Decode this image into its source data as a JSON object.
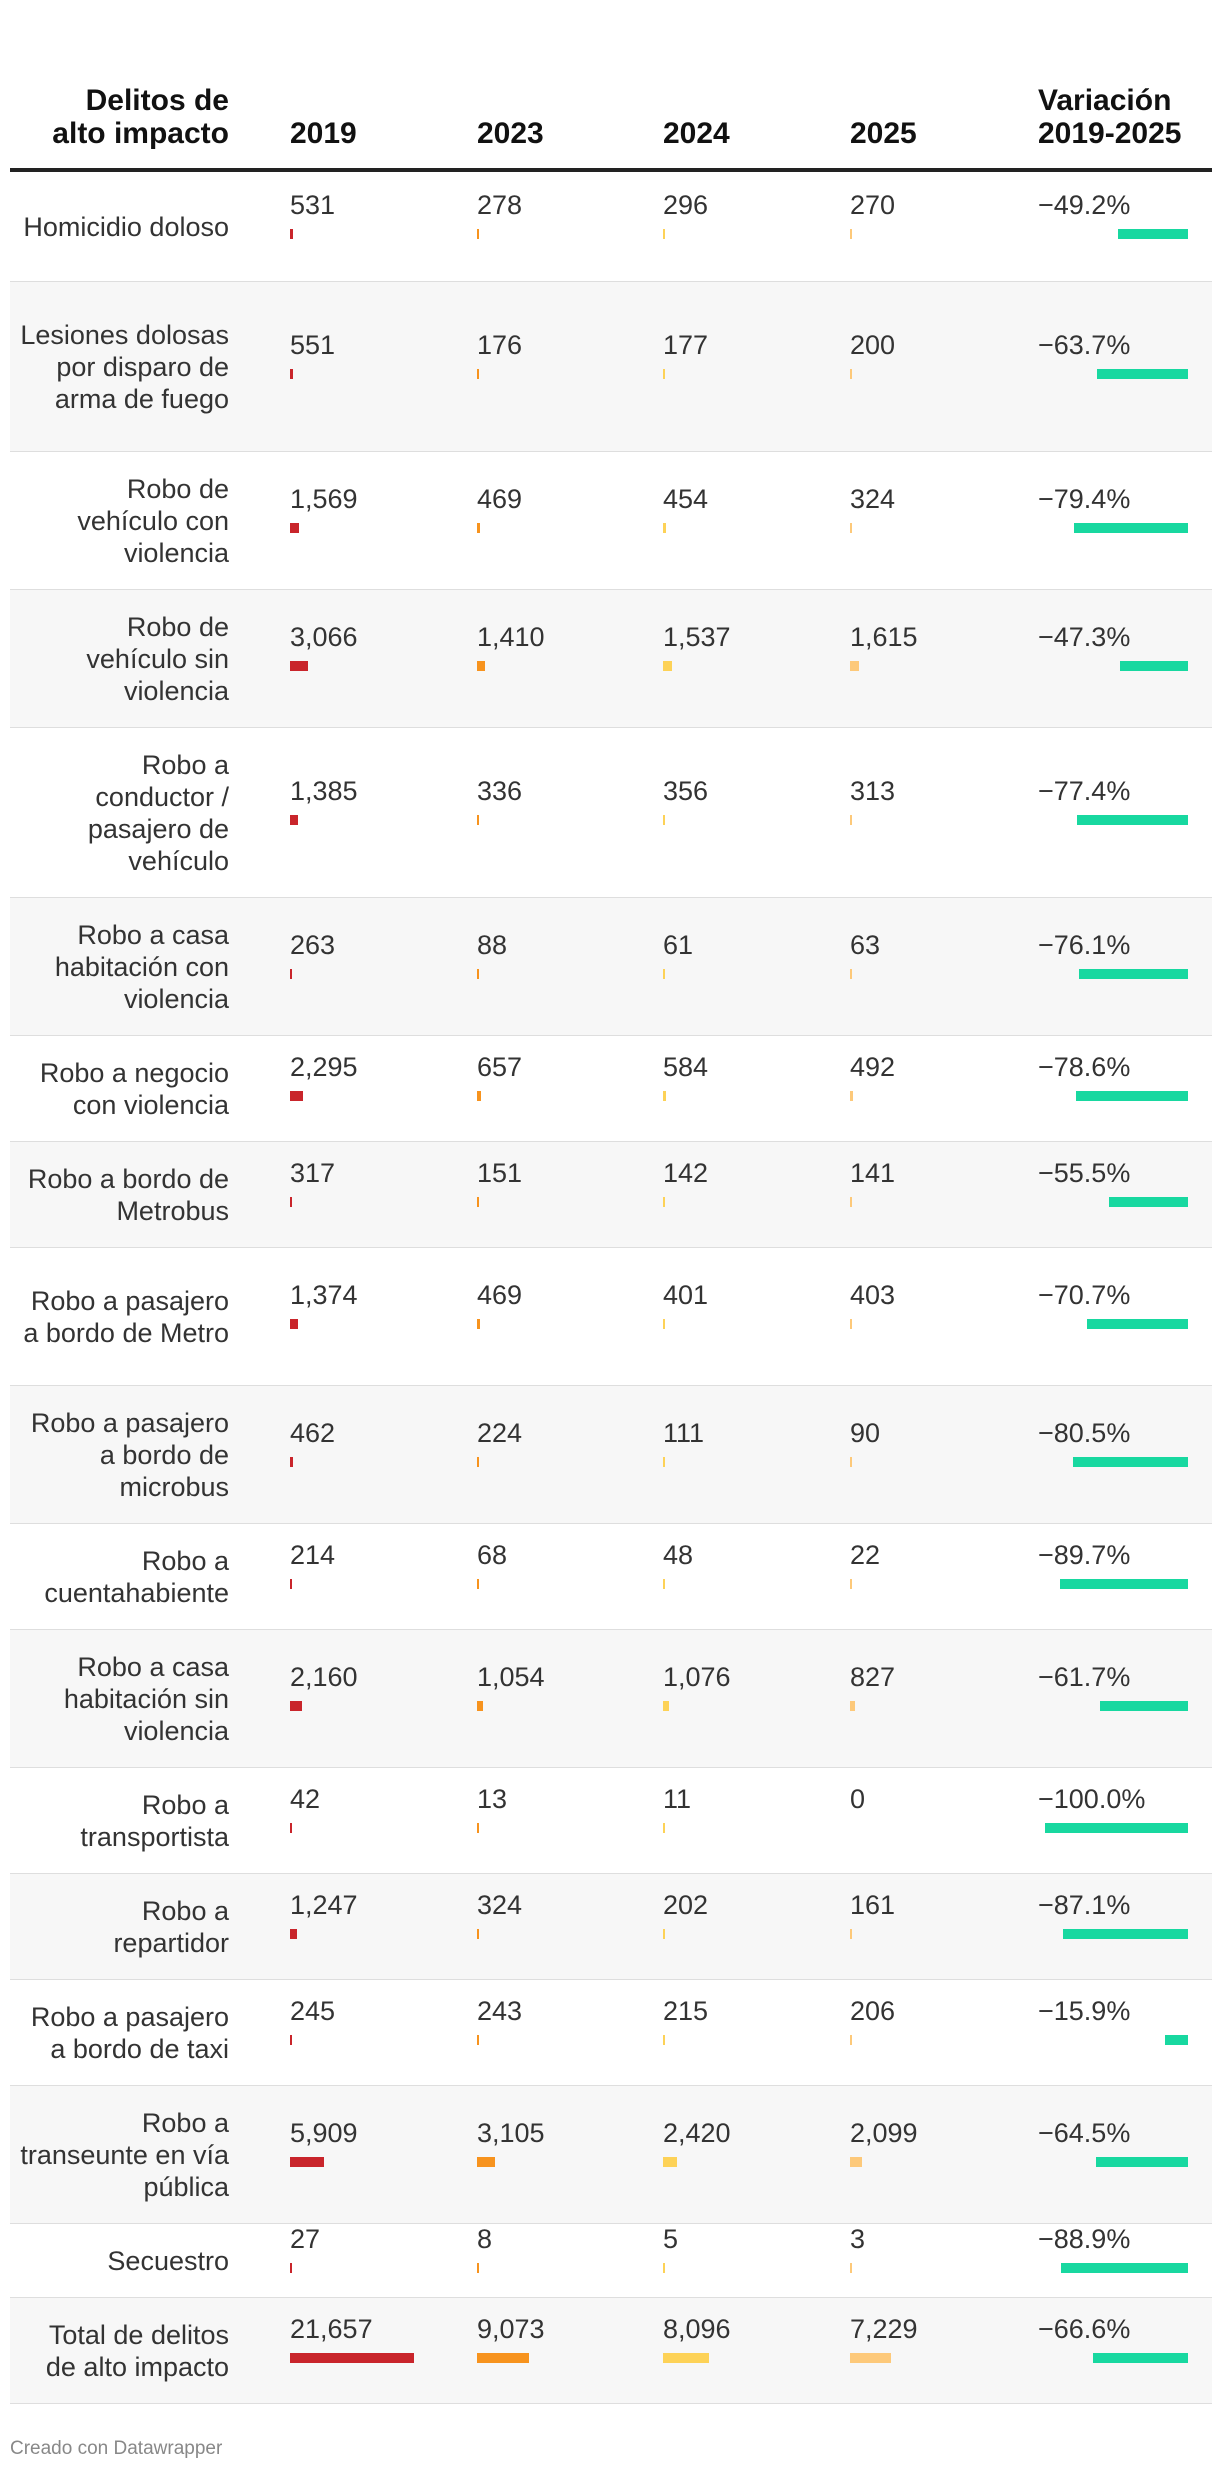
{
  "header": {
    "crime": "Delitos de alto impacto",
    "y2019": "2019",
    "y2023": "2023",
    "y2024": "2024",
    "y2025": "2025",
    "variation": "Variación 2019-2025"
  },
  "colors": {
    "y2019": "#c9252b",
    "y2023": "#f7931e",
    "y2024": "#fdd257",
    "y2025": "#fdc97a",
    "variation": "#18d8a0"
  },
  "rows": [
    {
      "name": "Homicidio doloso",
      "v2019": "531",
      "v2023": "278",
      "v2024": "296",
      "v2025": "270",
      "var": "−49.2%"
    },
    {
      "name": "Lesiones dolosas por disparo de arma de fuego",
      "v2019": "551",
      "v2023": "176",
      "v2024": "177",
      "v2025": "200",
      "var": "−63.7%"
    },
    {
      "name": "Robo de vehículo con violencia",
      "v2019": "1,569",
      "v2023": "469",
      "v2024": "454",
      "v2025": "324",
      "var": "−79.4%"
    },
    {
      "name": "Robo de vehículo sin violencia",
      "v2019": "3,066",
      "v2023": "1,410",
      "v2024": "1,537",
      "v2025": "1,615",
      "var": "−47.3%"
    },
    {
      "name": "Robo a conductor / pasajero de vehículo",
      "v2019": "1,385",
      "v2023": "336",
      "v2024": "356",
      "v2025": "313",
      "var": "−77.4%"
    },
    {
      "name": "Robo a casa habitación con violencia",
      "v2019": "263",
      "v2023": "88",
      "v2024": "61",
      "v2025": "63",
      "var": "−76.1%"
    },
    {
      "name": "Robo a negocio con violencia",
      "v2019": "2,295",
      "v2023": "657",
      "v2024": "584",
      "v2025": "492",
      "var": "−78.6%"
    },
    {
      "name": "Robo a bordo de Metrobus",
      "v2019": "317",
      "v2023": "151",
      "v2024": "142",
      "v2025": "141",
      "var": "−55.5%"
    },
    {
      "name": "Robo a pasajero a bordo de Metro",
      "v2019": "1,374",
      "v2023": "469",
      "v2024": "401",
      "v2025": "403",
      "var": "−70.7%"
    },
    {
      "name": "Robo a pasajero a bordo de microbus",
      "v2019": "462",
      "v2023": "224",
      "v2024": "111",
      "v2025": "90",
      "var": "−80.5%"
    },
    {
      "name": "Robo a cuentahabiente",
      "v2019": "214",
      "v2023": "68",
      "v2024": "48",
      "v2025": "22",
      "var": "−89.7%"
    },
    {
      "name": "Robo a casa habitación sin violencia",
      "v2019": "2,160",
      "v2023": "1,054",
      "v2024": "1,076",
      "v2025": "827",
      "var": "−61.7%"
    },
    {
      "name": "Robo a transportista",
      "v2019": "42",
      "v2023": "13",
      "v2024": "11",
      "v2025": "0",
      "var": "−100.0%"
    },
    {
      "name": "Robo a repartidor",
      "v2019": "1,247",
      "v2023": "324",
      "v2024": "202",
      "v2025": "161",
      "var": "−87.1%"
    },
    {
      "name": "Robo a pasajero a bordo de taxi",
      "v2019": "245",
      "v2023": "243",
      "v2024": "215",
      "v2025": "206",
      "var": "−15.9%"
    },
    {
      "name": "Robo a transeunte en vía pública",
      "v2019": "5,909",
      "v2023": "3,105",
      "v2024": "2,420",
      "v2025": "2,099",
      "var": "−64.5%"
    },
    {
      "name": "Secuestro",
      "v2019": "27",
      "v2023": "8",
      "v2024": "5",
      "v2025": "3",
      "var": "−88.9%"
    },
    {
      "name": "Total de delitos de alto impacto",
      "v2019": "21,657",
      "v2023": "9,073",
      "v2024": "8,096",
      "v2025": "7,229",
      "var": "−66.6%"
    }
  ],
  "chart_data": {
    "type": "table",
    "columns": [
      "2019",
      "2023",
      "2024",
      "2025",
      "Variación 2019-2025"
    ],
    "categories": [
      "Homicidio doloso",
      "Lesiones dolosas por disparo de arma de fuego",
      "Robo de vehículo con violencia",
      "Robo de vehículo sin violencia",
      "Robo a conductor / pasajero de vehículo",
      "Robo a casa habitación con violencia",
      "Robo a negocio con violencia",
      "Robo a bordo de Metrobus",
      "Robo a pasajero a bordo de Metro",
      "Robo a pasajero a bordo de microbus",
      "Robo a cuentahabiente",
      "Robo a casa habitación sin violencia",
      "Robo a transportista",
      "Robo a repartidor",
      "Robo a pasajero a bordo de taxi",
      "Robo a transeunte en vía pública",
      "Secuestro",
      "Total de delitos de alto impacto"
    ],
    "series": [
      {
        "name": "2019",
        "values": [
          531,
          551,
          1569,
          3066,
          1385,
          263,
          2295,
          317,
          1374,
          462,
          214,
          2160,
          42,
          1247,
          245,
          5909,
          27,
          21657
        ]
      },
      {
        "name": "2023",
        "values": [
          278,
          176,
          469,
          1410,
          336,
          88,
          657,
          151,
          469,
          224,
          68,
          1054,
          13,
          324,
          243,
          3105,
          8,
          9073
        ]
      },
      {
        "name": "2024",
        "values": [
          296,
          177,
          454,
          1537,
          356,
          61,
          584,
          142,
          401,
          111,
          48,
          1076,
          11,
          202,
          215,
          2420,
          5,
          8096
        ]
      },
      {
        "name": "2025",
        "values": [
          270,
          200,
          324,
          1615,
          313,
          63,
          492,
          141,
          403,
          90,
          22,
          827,
          0,
          161,
          206,
          2099,
          3,
          7229
        ]
      },
      {
        "name": "Variación 2019-2025",
        "values": [
          -49.2,
          -63.7,
          -79.4,
          -47.3,
          -77.4,
          -76.1,
          -78.6,
          -55.5,
          -70.7,
          -80.5,
          -89.7,
          -61.7,
          -100.0,
          -87.1,
          -15.9,
          -64.5,
          -88.9,
          -66.6
        ]
      }
    ],
    "bar_scale_max": 21657,
    "variation_scale_min": -100
  },
  "footer": {
    "text": "Creado con Datawrapper"
  }
}
